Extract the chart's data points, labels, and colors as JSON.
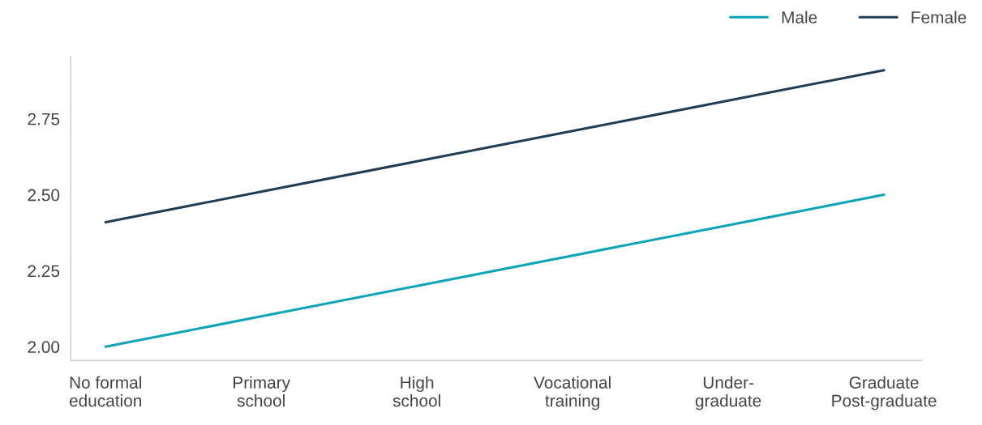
{
  "chart_data": {
    "type": "line",
    "categories": [
      "No formal\neducation",
      "Primary\nschool",
      "High\nschool",
      "Vocational\ntraining",
      "Under-\ngraduate",
      "Graduate\nPost-graduate"
    ],
    "series": [
      {
        "name": "Male",
        "color": "#0aa5b9",
        "values": [
          2.0,
          2.1,
          2.2,
          2.3,
          2.4,
          2.5
        ]
      },
      {
        "name": "Female",
        "color": "#1f3d55",
        "values": [
          2.41,
          2.51,
          2.61,
          2.71,
          2.81,
          2.91
        ]
      }
    ],
    "ylim": [
      1.955,
      2.955
    ],
    "yticks": [
      {
        "value": 2.0,
        "label": "2.00"
      },
      {
        "value": 2.25,
        "label": "2.25"
      },
      {
        "value": 2.5,
        "label": "2.50"
      },
      {
        "value": 2.75,
        "label": "2.75"
      }
    ],
    "grid": false,
    "legend": "top right",
    "marker": "none",
    "line_style": "solid"
  }
}
